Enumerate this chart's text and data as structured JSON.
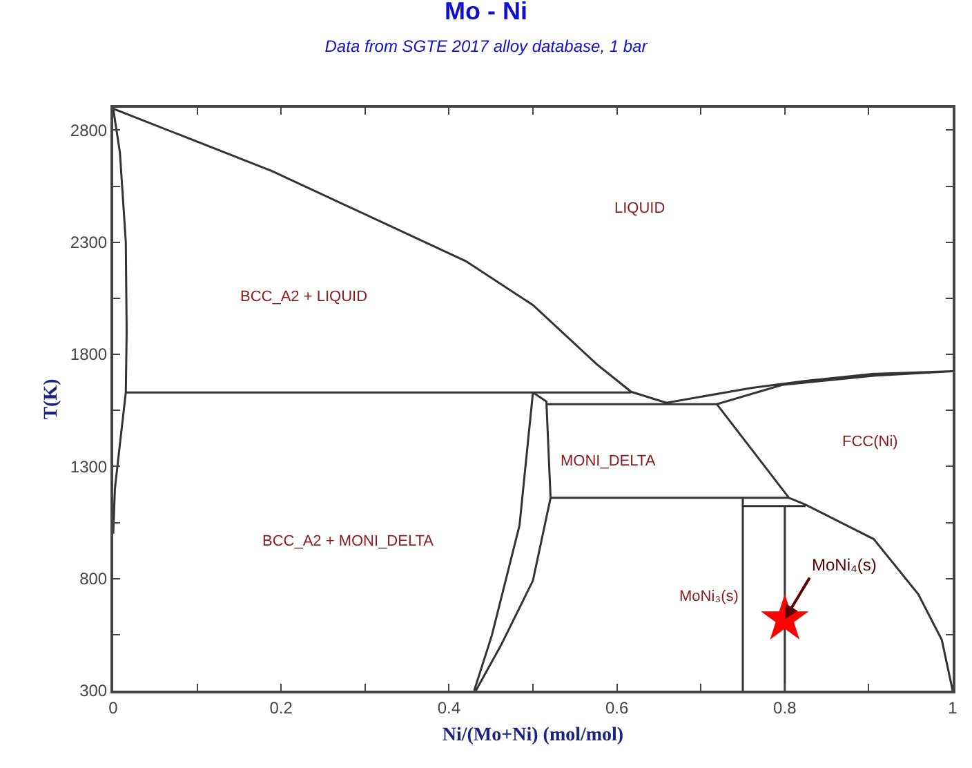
{
  "chart_data": {
    "type": "line",
    "title": "Mo - Ni",
    "subtitle": "Data from SGTE 2017 alloy database, 1 bar",
    "xlabel": "Ni/(Mo+Ni) (mol/mol)",
    "ylabel": "T(K)",
    "xlim": [
      0,
      1
    ],
    "ylim": [
      300,
      2900
    ],
    "xticks": [
      0,
      {
        "value": 0.1,
        "label": null
      },
      0.2,
      {
        "value": 0.3,
        "label": null
      },
      0.4,
      {
        "value": 0.5,
        "label": null
      },
      0.6,
      {
        "value": 0.7,
        "label": null
      },
      0.8,
      {
        "value": 0.9,
        "label": null
      },
      1
    ],
    "yticks": [
      300,
      {
        "value": 550,
        "label": null
      },
      800,
      {
        "value": 1050,
        "label": null
      },
      1300,
      {
        "value": 1550,
        "label": null
      },
      1800,
      {
        "value": 2050,
        "label": null
      },
      2300,
      {
        "value": 2550,
        "label": null
      },
      2800
    ],
    "marker": "none",
    "line_style": "solid",
    "series": [
      {
        "color": "#333333",
        "x": [
          0,
          0.19,
          0.42,
          0.5,
          0.576,
          0.617,
          0.659,
          0.76,
          0.825,
          0.906,
          1,
          0.906,
          0.797,
          0.719,
          0.516
        ],
        "values": [
          2896,
          2616,
          2216,
          2020,
          1756,
          1633,
          1584,
          1650,
          1682,
          1713,
          1725,
          1705,
          1664,
          1578,
          1578
        ]
      },
      {
        "color": "#333333",
        "x": [
          0,
          0.008,
          0.015,
          0.016,
          0.015,
          0.008,
          0.002,
          0
        ],
        "values": [
          2896,
          2700,
          2300,
          1900,
          1630,
          1400,
          1200,
          1000
        ]
      },
      {
        "color": "#333333",
        "x": [
          0.015,
          0.617
        ],
        "values": [
          1630,
          1630
        ]
      },
      {
        "color": "#333333",
        "x": [
          0.5,
          0.484,
          0.451,
          0.43
        ],
        "values": [
          1630,
          1037,
          546,
          300
        ]
      },
      {
        "color": "#333333",
        "x": [
          0.5,
          0.516,
          0.521,
          0.5,
          0.462,
          0.432
        ],
        "values": [
          1630,
          1590,
          1160,
          791,
          503,
          300
        ]
      },
      {
        "color": "#333333",
        "x": [
          0.719,
          0.805,
          0.825,
          0.906,
          0.959,
          0.987,
          1
        ],
        "values": [
          1578,
          1160,
          1129,
          976,
          730,
          527,
          300
        ]
      },
      {
        "color": "#333333",
        "x": [
          0.521,
          0.805
        ],
        "values": [
          1160,
          1160
        ]
      },
      {
        "color": "#333333",
        "x": [
          0.75,
          0.75
        ],
        "values": [
          300,
          1160
        ]
      },
      {
        "color": "#333333",
        "x": [
          0.75,
          0.825
        ],
        "values": [
          1123,
          1123
        ]
      },
      {
        "color": "#333333",
        "x": [
          0.8,
          0.8
        ],
        "values": [
          300,
          1123
        ]
      },
      {
        "type": "scatter",
        "marker": "star",
        "color": "#ff0000",
        "x": [
          0.8
        ],
        "values": [
          619
        ]
      }
    ],
    "annotations": [
      "LIQUID",
      "BCC_A2 + LIQUID",
      "MONI_DELTA",
      "BCC_A2 + MONI_DELTA",
      "FCC(Ni)",
      "MoNi₃(s)",
      {
        "text": "MoNi₄(s)",
        "x": 0.8,
        "y": 619
      }
    ]
  }
}
